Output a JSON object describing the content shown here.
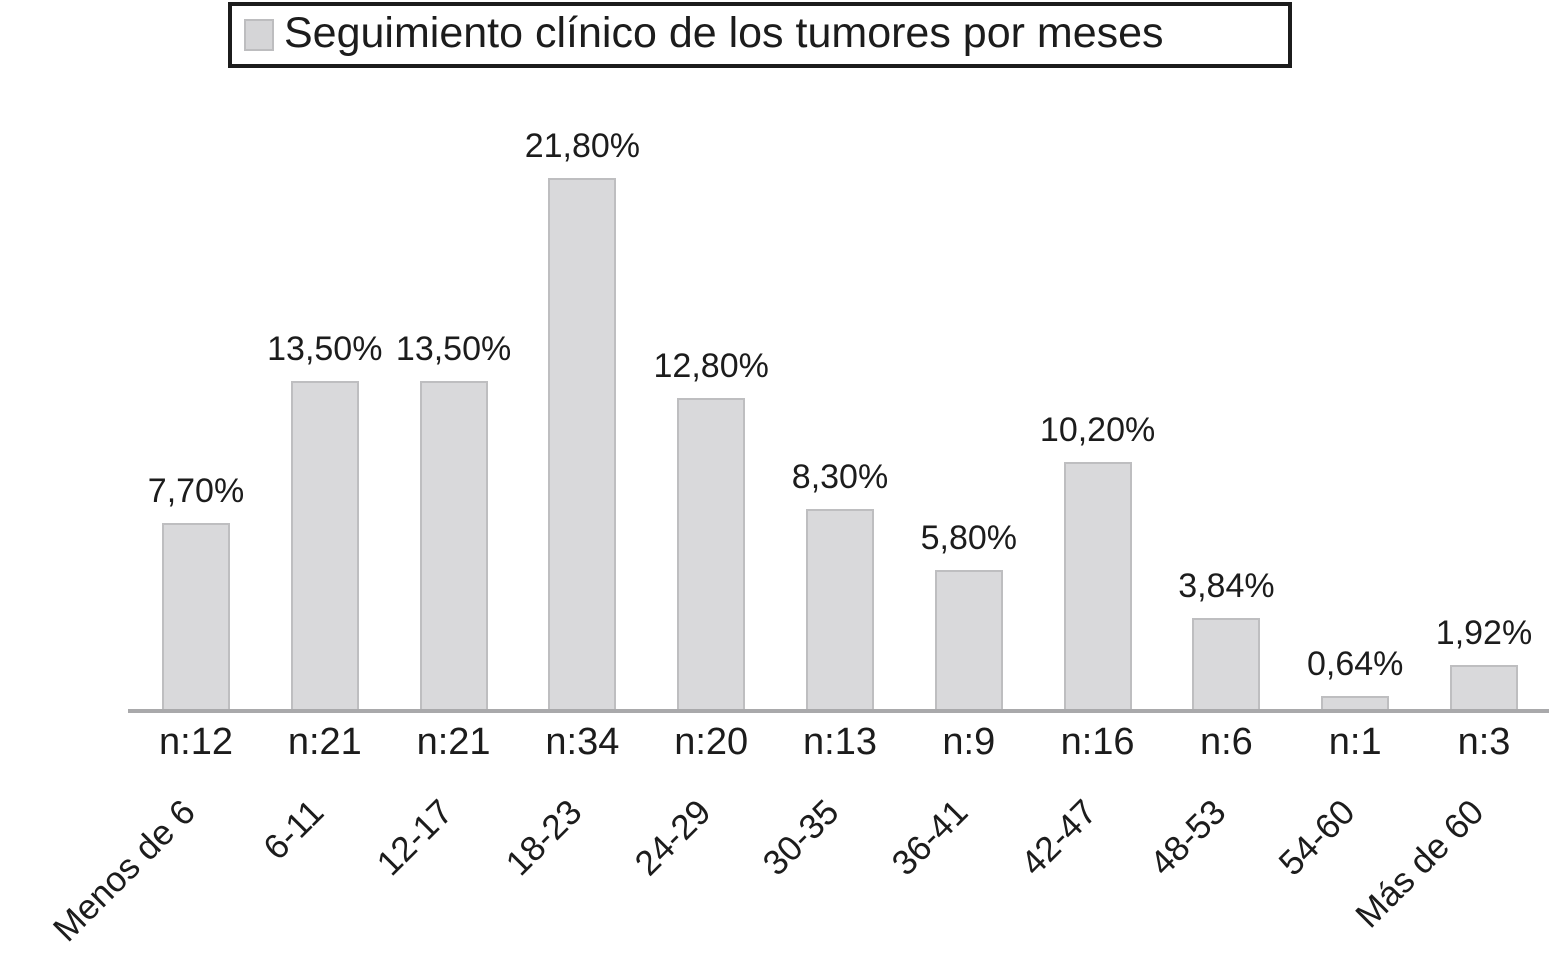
{
  "legend": {
    "title": "Seguimiento clínico de los tumores por meses"
  },
  "chart_data": {
    "type": "bar",
    "title": "Seguimiento clínico de los tumores por meses",
    "categories": [
      "Menos de 6",
      "6-11",
      "12-17",
      "18-23",
      "24-29",
      "30-35",
      "36-41",
      "42-47",
      "48-53",
      "54-60",
      "Más de 60"
    ],
    "series": [
      {
        "name": "Seguimiento clínico de los tumores por meses",
        "values": [
          7.7,
          13.5,
          13.5,
          21.8,
          12.8,
          8.3,
          5.8,
          10.2,
          3.84,
          0.64,
          1.92
        ]
      }
    ],
    "value_labels": [
      "7,70%",
      "13,50%",
      "13,50%",
      "21,80%",
      "12,80%",
      "8,30%",
      "5,80%",
      "10,20%",
      "3,84%",
      "0,64%",
      "1,92%"
    ],
    "n_labels": [
      "n:12",
      "n:21",
      "n:21",
      "n:34",
      "n:20",
      "n:13",
      "n:9",
      "n:16",
      "n:6",
      "n:1",
      "n:3"
    ],
    "counts": [
      12,
      21,
      21,
      34,
      20,
      13,
      9,
      16,
      6,
      1,
      3
    ],
    "xlabel": "",
    "ylabel": "",
    "ylim": [
      0,
      25
    ],
    "grid": false,
    "legend_position": "top",
    "bar_color": "#d9d9db",
    "bar_border_color": "#bebec0",
    "axis_color": "#a9a9ab",
    "text_color": "#1c1c1c"
  }
}
